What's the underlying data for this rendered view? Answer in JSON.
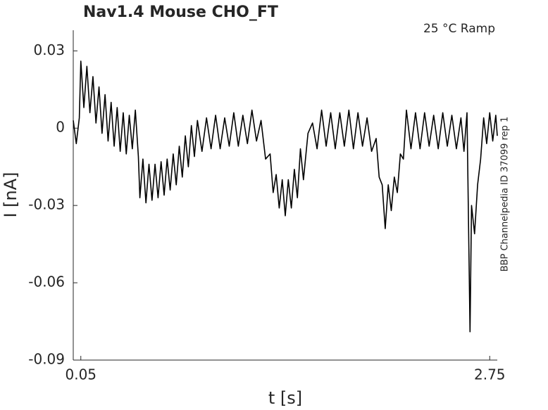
{
  "chart_data": {
    "type": "line",
    "title": "Nav1.4  Mouse  CHO_FT",
    "annotation": "25 °C  Ramp",
    "side_note": "BBP Channelpedia ID 37099 rep 1",
    "x_label": "t [s]",
    "y_label": "I [nA]",
    "xlim": [
      0,
      2.8
    ],
    "ylim": [
      -0.09,
      0.038
    ],
    "xticks": [
      0.05,
      2.75
    ],
    "yticks": [
      0.03,
      0,
      -0.03,
      -0.06,
      -0.09
    ],
    "series": [
      {
        "color": "#000000",
        "x": [
          0.0,
          0.02,
          0.04,
          0.05,
          0.07,
          0.09,
          0.11,
          0.13,
          0.15,
          0.17,
          0.19,
          0.21,
          0.23,
          0.25,
          0.27,
          0.29,
          0.31,
          0.33,
          0.35,
          0.37,
          0.39,
          0.41,
          0.43,
          0.44,
          0.46,
          0.48,
          0.5,
          0.52,
          0.54,
          0.56,
          0.58,
          0.6,
          0.62,
          0.64,
          0.66,
          0.68,
          0.7,
          0.72,
          0.74,
          0.76,
          0.78,
          0.8,
          0.82,
          0.85,
          0.88,
          0.91,
          0.94,
          0.97,
          1.0,
          1.03,
          1.06,
          1.09,
          1.12,
          1.15,
          1.18,
          1.21,
          1.24,
          1.27,
          1.3,
          1.32,
          1.34,
          1.36,
          1.38,
          1.4,
          1.42,
          1.44,
          1.46,
          1.48,
          1.5,
          1.52,
          1.55,
          1.58,
          1.61,
          1.64,
          1.67,
          1.7,
          1.73,
          1.76,
          1.79,
          1.82,
          1.85,
          1.88,
          1.91,
          1.94,
          1.97,
          2.0,
          2.02,
          2.04,
          2.06,
          2.08,
          2.1,
          2.12,
          2.14,
          2.16,
          2.18,
          2.2,
          2.23,
          2.26,
          2.29,
          2.32,
          2.35,
          2.38,
          2.41,
          2.44,
          2.47,
          2.5,
          2.53,
          2.56,
          2.58,
          2.6,
          2.62,
          2.63,
          2.65,
          2.67,
          2.69,
          2.71,
          2.73,
          2.75,
          2.77,
          2.79,
          2.8
        ],
        "values": [
          0.003,
          -0.006,
          0.004,
          0.026,
          0.008,
          0.024,
          0.006,
          0.02,
          0.002,
          0.016,
          -0.002,
          0.013,
          -0.005,
          0.01,
          -0.007,
          0.008,
          -0.009,
          0.006,
          -0.01,
          0.005,
          -0.008,
          0.007,
          -0.011,
          -0.027,
          -0.012,
          -0.029,
          -0.014,
          -0.028,
          -0.014,
          -0.027,
          -0.013,
          -0.026,
          -0.012,
          -0.024,
          -0.01,
          -0.022,
          -0.007,
          -0.019,
          -0.003,
          -0.015,
          0.001,
          -0.011,
          0.003,
          -0.009,
          0.004,
          -0.008,
          0.005,
          -0.008,
          0.004,
          -0.007,
          0.006,
          -0.007,
          0.005,
          -0.006,
          0.007,
          -0.005,
          0.003,
          -0.012,
          -0.01,
          -0.025,
          -0.018,
          -0.031,
          -0.02,
          -0.034,
          -0.02,
          -0.031,
          -0.016,
          -0.027,
          -0.008,
          -0.02,
          -0.002,
          0.002,
          -0.008,
          0.007,
          -0.007,
          0.006,
          -0.008,
          0.006,
          -0.007,
          0.007,
          -0.008,
          0.006,
          -0.007,
          0.004,
          -0.009,
          -0.004,
          -0.019,
          -0.022,
          -0.039,
          -0.022,
          -0.032,
          -0.019,
          -0.025,
          -0.01,
          -0.012,
          0.007,
          -0.008,
          0.006,
          -0.008,
          0.006,
          -0.007,
          0.005,
          -0.008,
          0.006,
          -0.007,
          0.005,
          -0.008,
          0.004,
          -0.009,
          0.006,
          -0.079,
          -0.03,
          -0.041,
          -0.022,
          -0.012,
          0.004,
          -0.006,
          0.006,
          -0.005,
          0.005,
          -0.003
        ]
      }
    ]
  }
}
